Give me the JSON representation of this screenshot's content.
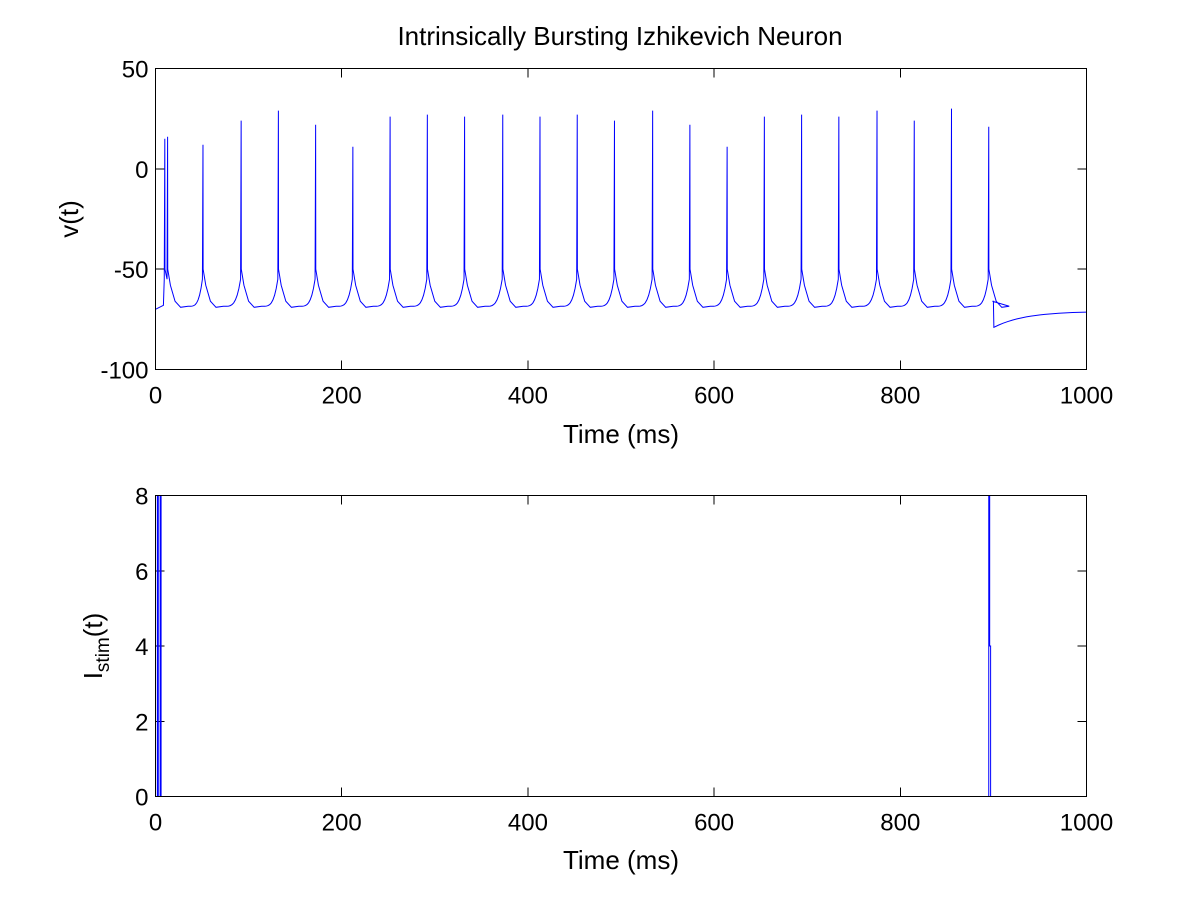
{
  "chart_data": [
    {
      "type": "line",
      "title": "Intrinsically Bursting Izhikevich Neuron",
      "xlabel": "Time (ms)",
      "ylabel": "v(t)",
      "xlim": [
        0,
        1000
      ],
      "ylim": [
        -100,
        50
      ],
      "xticks": [
        0,
        200,
        400,
        600,
        800,
        1000
      ],
      "yticks": [
        -100,
        -50,
        0,
        50
      ],
      "xtick_labels": [
        "0",
        "200",
        "400",
        "600",
        "800",
        "1000"
      ],
      "ytick_labels": [
        "-100",
        "-50",
        "0",
        "50"
      ],
      "grid": false,
      "color": "#0000ff",
      "series": [
        {
          "description": "membrane potential trace",
          "spikes": [
            {
              "t": 10,
              "peak": 15
            },
            {
              "t": 13,
              "peak": 16
            },
            {
              "t": 51,
              "peak": 12
            },
            {
              "t": 92,
              "peak": 24
            },
            {
              "t": 132,
              "peak": 29
            },
            {
              "t": 172,
              "peak": 22
            },
            {
              "t": 212,
              "peak": 11
            },
            {
              "t": 252,
              "peak": 26
            },
            {
              "t": 292,
              "peak": 27
            },
            {
              "t": 332,
              "peak": 26
            },
            {
              "t": 373,
              "peak": 27
            },
            {
              "t": 413,
              "peak": 26
            },
            {
              "t": 453,
              "peak": 27
            },
            {
              "t": 493,
              "peak": 24
            },
            {
              "t": 534,
              "peak": 29
            },
            {
              "t": 574,
              "peak": 22
            },
            {
              "t": 614,
              "peak": 11
            },
            {
              "t": 654,
              "peak": 26
            },
            {
              "t": 694,
              "peak": 27
            },
            {
              "t": 734,
              "peak": 26
            },
            {
              "t": 775,
              "peak": 29
            },
            {
              "t": 815,
              "peak": 24
            },
            {
              "t": 855,
              "peak": 30
            },
            {
              "t": 895,
              "peak": 21
            }
          ],
          "resting": -70,
          "pre_spike_level": -55,
          "after_spike_trough": -69,
          "stim_off_time": 900,
          "post_stim_min": -79,
          "end_value": -71
        }
      ]
    },
    {
      "type": "line",
      "title": "",
      "xlabel": "Time (ms)",
      "ylabel_main": "I",
      "ylabel_sub": "stim",
      "ylabel_tail": "(t)",
      "xlim": [
        0,
        1000
      ],
      "ylim": [
        0,
        8
      ],
      "xticks": [
        0,
        200,
        400,
        600,
        800,
        1000
      ],
      "yticks": [
        0,
        2,
        4,
        6,
        8
      ],
      "xtick_labels": [
        "0",
        "200",
        "400",
        "600",
        "800",
        "1000"
      ],
      "ytick_labels": [
        "0",
        "2",
        "4",
        "6",
        "8"
      ],
      "grid": false,
      "color": "#0000ff",
      "series": [
        {
          "description": "stimulus current",
          "x": [
            0,
            2,
            2,
            3,
            3,
            5,
            5,
            6,
            6,
            895,
            895,
            896,
            896,
            897,
            897,
            1000
          ],
          "y": [
            0,
            0,
            8,
            8,
            0,
            0,
            8,
            8,
            0,
            0,
            8,
            8,
            4,
            4,
            0,
            0
          ]
        }
      ]
    }
  ]
}
